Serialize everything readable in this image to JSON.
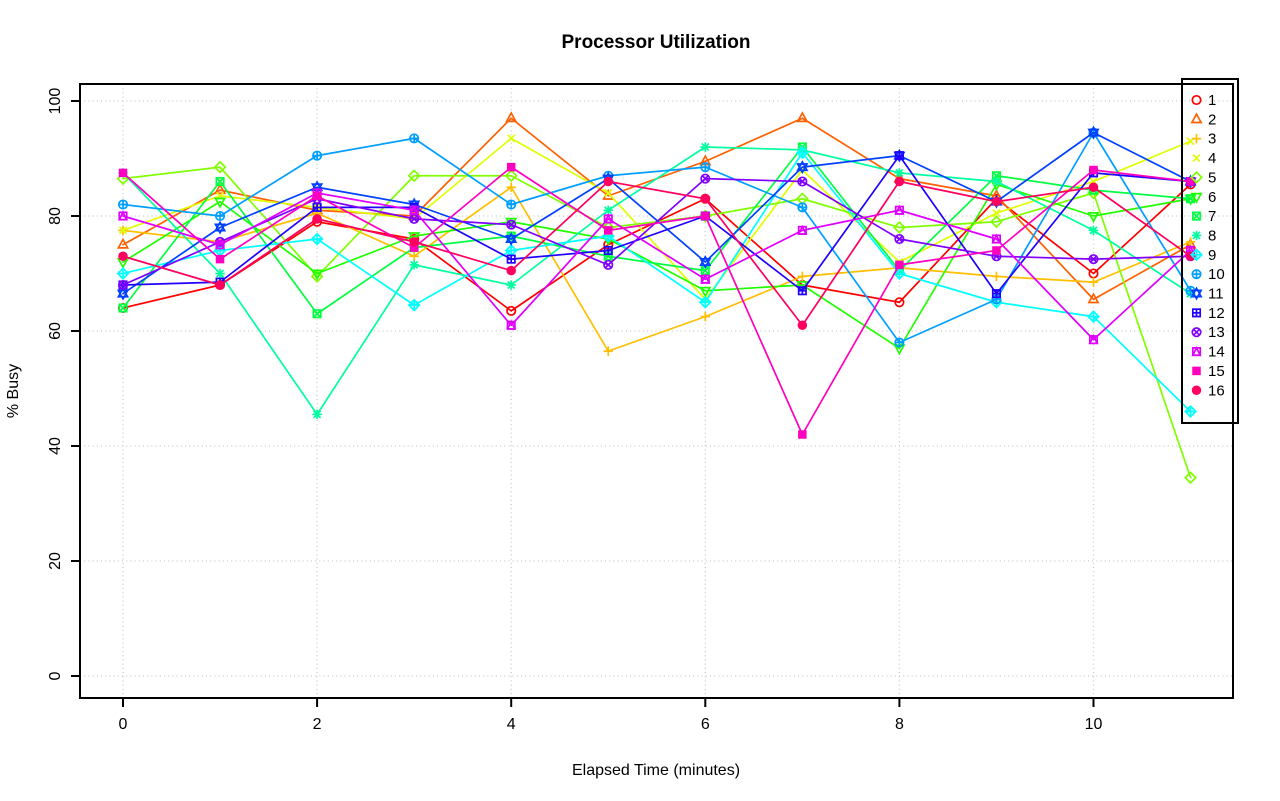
{
  "chart_data": {
    "type": "line",
    "title": "Processor Utilization",
    "xlabel": "Elapsed Time (minutes)",
    "ylabel": "% Busy",
    "x": [
      0,
      1,
      2,
      3,
      4,
      5,
      6,
      7,
      8,
      9,
      10,
      11
    ],
    "xlim": [
      0,
      11
    ],
    "ylim": [
      0,
      100
    ],
    "x_ticks": [
      0,
      2,
      4,
      6,
      8,
      10
    ],
    "y_ticks": [
      0,
      20,
      40,
      60,
      80,
      100
    ],
    "grid": "dotted",
    "grid_color": "#c9c9c9",
    "axis_color": "#000000",
    "background": "#ffffff",
    "legend_position": "top-right",
    "legend_labels": [
      "1",
      "2",
      "3",
      "4",
      "5",
      "6",
      "7",
      "8",
      "9",
      "10",
      "11",
      "12",
      "13",
      "14",
      "15",
      "16"
    ],
    "series": [
      {
        "name": "1",
        "color": "#FF0000",
        "symbol": "circle-open",
        "values": [
          64,
          68,
          79,
          76,
          63.5,
          75,
          83,
          68,
          65,
          83,
          70,
          85.5
        ]
      },
      {
        "name": "2",
        "color": "#FF6000",
        "symbol": "triangle-up-open",
        "values": [
          75,
          84.5,
          81,
          80,
          97,
          83.5,
          89.5,
          97,
          86.5,
          83.5,
          65.5,
          75
        ]
      },
      {
        "name": "3",
        "color": "#FFBF00",
        "symbol": "plus",
        "values": [
          77.5,
          75.5,
          80.5,
          73,
          85,
          56.5,
          62.5,
          69.5,
          71,
          69.5,
          68.5,
          75.5
        ]
      },
      {
        "name": "4",
        "color": "#DFFF00",
        "symbol": "x-cross",
        "values": [
          77.5,
          83.5,
          81.5,
          79.5,
          93.5,
          84,
          65.5,
          88,
          72,
          80.5,
          86,
          93
        ]
      },
      {
        "name": "5",
        "color": "#80FF00",
        "symbol": "diamond-open",
        "values": [
          86.5,
          88.5,
          69.5,
          87,
          87,
          78,
          80,
          83,
          78,
          79,
          84,
          34.5
        ]
      },
      {
        "name": "6",
        "color": "#20FF00",
        "symbol": "triangle-down-open",
        "values": [
          72,
          82.5,
          70,
          76.5,
          79,
          76,
          67,
          68,
          57,
          85.5,
          80,
          83
        ]
      },
      {
        "name": "7",
        "color": "#00FF40",
        "symbol": "square-x",
        "values": [
          64,
          86,
          63,
          74.5,
          76.5,
          73,
          70.5,
          92,
          70.5,
          87,
          84.5,
          83
        ]
      },
      {
        "name": "8",
        "color": "#00FF9F",
        "symbol": "asterisk",
        "values": [
          87.5,
          70,
          45.5,
          71.5,
          68,
          81,
          92,
          91.5,
          87.5,
          86,
          77.5,
          66.5
        ]
      },
      {
        "name": "9",
        "color": "#00FFFF",
        "symbol": "diamond-plus",
        "values": [
          70,
          74,
          76,
          64.5,
          74,
          76.5,
          65,
          91,
          70,
          65,
          62.5,
          46
        ]
      },
      {
        "name": "10",
        "color": "#009FFF",
        "symbol": "circle-plus",
        "values": [
          82,
          80,
          90.5,
          93.5,
          82,
          87,
          88.5,
          81.5,
          58,
          65.5,
          94.5,
          67
        ]
      },
      {
        "name": "11",
        "color": "#0040FF",
        "symbol": "star",
        "values": [
          66.5,
          78,
          85,
          82,
          76,
          86.5,
          72,
          88.5,
          90.5,
          82.5,
          94.5,
          86
        ]
      },
      {
        "name": "12",
        "color": "#2000FF",
        "symbol": "square-plus",
        "values": [
          68,
          68.5,
          81.5,
          81.5,
          72.5,
          74,
          80,
          67,
          90.5,
          66.5,
          87.5,
          86
        ]
      },
      {
        "name": "13",
        "color": "#8000FF",
        "symbol": "circle-x",
        "values": [
          68,
          75.5,
          83,
          79.5,
          78.5,
          71.5,
          86.5,
          86,
          76,
          73,
          72.5,
          73
        ]
      },
      {
        "name": "14",
        "color": "#DF00FF",
        "symbol": "square-triangle",
        "values": [
          80,
          75,
          84,
          81,
          61,
          79.5,
          69,
          77.5,
          81,
          76,
          58.5,
          74
        ]
      },
      {
        "name": "15",
        "color": "#FF00BF",
        "symbol": "square-filled",
        "values": [
          87.5,
          72.5,
          83.5,
          74.5,
          88.5,
          77.5,
          80,
          42,
          71.5,
          74,
          88,
          86
        ]
      },
      {
        "name": "16",
        "color": "#FF0060",
        "symbol": "circle-filled",
        "values": [
          73,
          68,
          79.5,
          75.5,
          70.5,
          86,
          83,
          61,
          86,
          82.5,
          85,
          73
        ]
      }
    ]
  }
}
